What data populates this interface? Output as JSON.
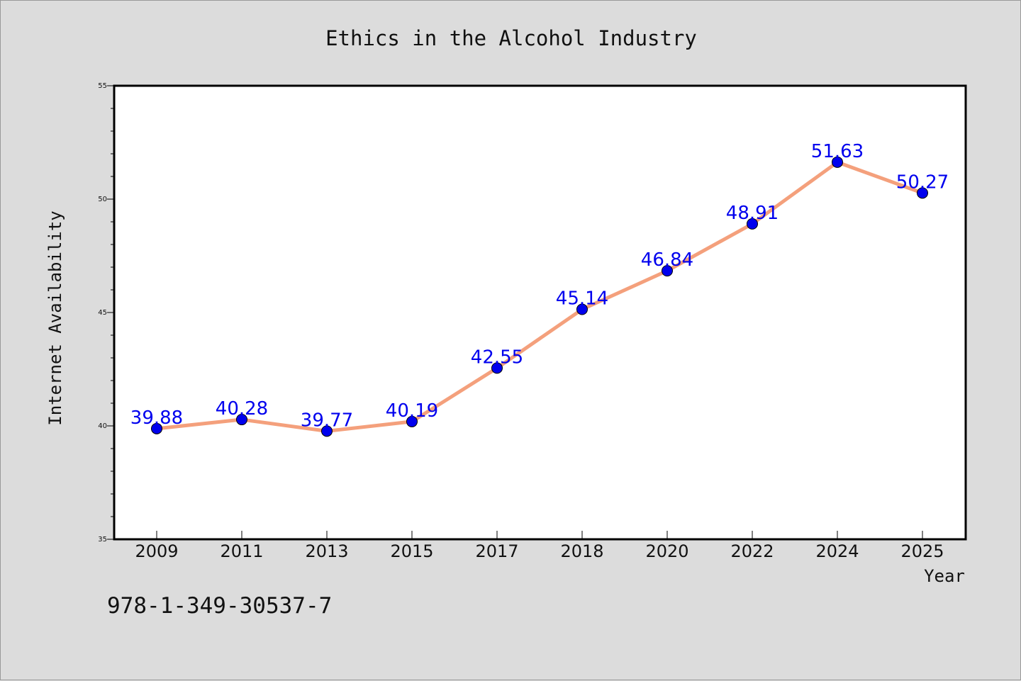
{
  "chart_data": {
    "type": "line",
    "title": "Ethics in the Alcohol Industry",
    "xlabel": "Year",
    "ylabel": "Internet Availability",
    "categories": [
      "2009",
      "2011",
      "2013",
      "2015",
      "2017",
      "2018",
      "2020",
      "2022",
      "2024",
      "2025"
    ],
    "series": [
      {
        "values": [
          39.88,
          40.28,
          39.77,
          40.19,
          42.55,
          45.14,
          46.84,
          48.91,
          51.63,
          50.27
        ],
        "labels": [
          "39.88",
          "40.28",
          "39.77",
          "40.19",
          "42.55",
          "45.14",
          "46.84",
          "48.91",
          "51.63",
          "50.27"
        ],
        "line_color": "#f4a07c",
        "marker_color": "#0000ee",
        "label_color": "#0000ee"
      }
    ],
    "ylim": [
      35,
      55
    ],
    "yticks": [
      "35",
      "40",
      "45",
      "50",
      "55"
    ],
    "grid": false,
    "legend": "none"
  },
  "footer": {
    "code": "978-1-349-30537-7"
  }
}
